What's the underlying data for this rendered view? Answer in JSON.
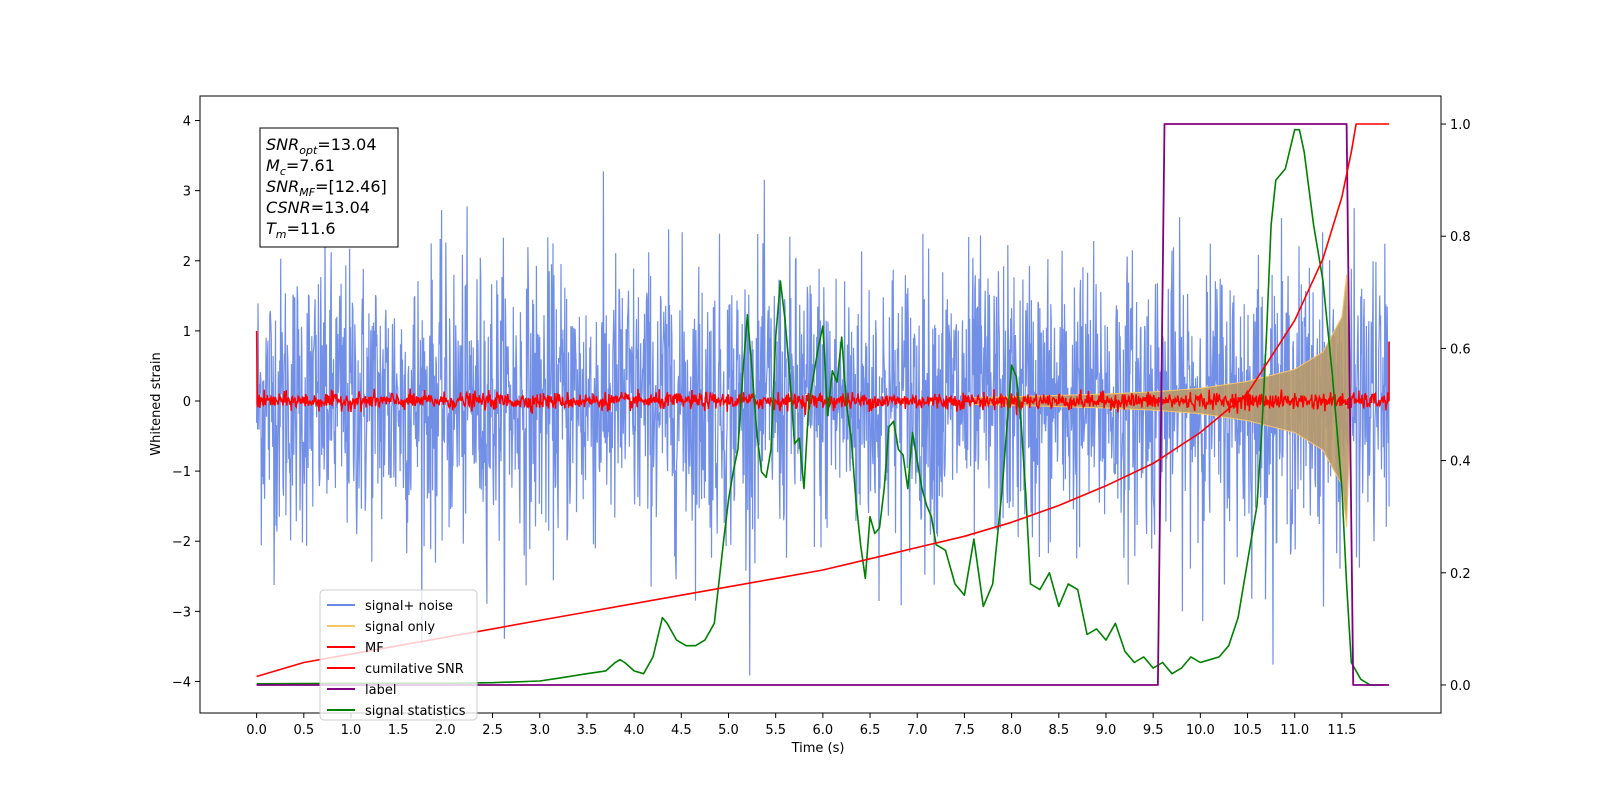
{
  "chart_data": {
    "type": "line",
    "xlabel": "Time (s)",
    "ylabel": "Whitened strain",
    "xlim": [
      -0.6,
      12.55
    ],
    "ylim": [
      -4.45,
      4.35
    ],
    "ylim_right": [
      -0.05,
      1.05
    ],
    "x_ticks": [
      "0.0",
      "0.5",
      "1.0",
      "1.5",
      "2.0",
      "2.5",
      "3.0",
      "3.5",
      "4.0",
      "4.5",
      "5.0",
      "5.5",
      "6.0",
      "6.5",
      "7.0",
      "7.5",
      "8.0",
      "8.5",
      "9.0",
      "9.5",
      "10.0",
      "10.5",
      "11.0",
      "11.5"
    ],
    "y_ticks_left": [
      "4",
      "3",
      "2",
      "1",
      "0",
      "−1",
      "−2",
      "−3",
      "−4"
    ],
    "y_ticks_right": [
      "1.0",
      "0.8",
      "0.6",
      "0.4",
      "0.2",
      "0.0"
    ],
    "annotation": {
      "lines": [
        {
          "sym": "SNR",
          "sub": "opt",
          "val": "=13.04"
        },
        {
          "sym": "M",
          "sub": "c",
          "val": "=7.61"
        },
        {
          "sym": "SNR",
          "sub": "MF",
          "val": "=[12.46]"
        },
        {
          "sym": "CSNR",
          "sub": "",
          "val": "=13.04"
        },
        {
          "sym": "T",
          "sub": "m",
          "val": "=11.6"
        }
      ]
    },
    "series": [
      {
        "name": "signal+ noise",
        "color": "#6a89e6",
        "axis": "left",
        "kind": "noise",
        "x_range": [
          0,
          12.0
        ],
        "amplitude_envelope": 2.9,
        "std": 1.0
      },
      {
        "name": "signal only",
        "color": "#f5c56b",
        "axis": "left",
        "kind": "chirp-envelope",
        "x": [
          7.6,
          8.0,
          8.5,
          9.0,
          9.5,
          10.0,
          10.5,
          11.0,
          11.3,
          11.5,
          11.55,
          11.6
        ],
        "y": [
          0.05,
          0.06,
          0.08,
          0.1,
          0.13,
          0.18,
          0.28,
          0.45,
          0.7,
          1.2,
          1.8,
          0.0
        ]
      },
      {
        "name": "MF",
        "color": "#ff0000",
        "axis": "left",
        "kind": "noise-band",
        "x_range": [
          0,
          12.0
        ],
        "std": 0.06,
        "start_value": 1.0,
        "end_value": 0.85
      },
      {
        "name": "cumilative SNR",
        "color": "#ff0000",
        "axis": "right",
        "x": [
          0,
          0.5,
          1,
          1.5,
          2,
          2.5,
          3,
          3.5,
          4,
          4.5,
          5,
          5.5,
          6,
          6.5,
          7,
          7.5,
          8,
          8.5,
          9,
          9.5,
          10,
          10.5,
          11,
          11.3,
          11.5,
          11.6,
          11.65,
          12.0
        ],
        "y": [
          0.015,
          0.04,
          0.055,
          0.07,
          0.085,
          0.1,
          0.115,
          0.13,
          0.145,
          0.16,
          0.175,
          0.19,
          0.205,
          0.225,
          0.245,
          0.265,
          0.29,
          0.32,
          0.355,
          0.395,
          0.45,
          0.52,
          0.65,
          0.76,
          0.87,
          0.95,
          1.0,
          1.0
        ]
      },
      {
        "name": "label",
        "color": "#800080",
        "axis": "right",
        "x": [
          0,
          9.55,
          9.62,
          11.55,
          11.62,
          12.0
        ],
        "y": [
          0.0,
          0.0,
          1.0,
          1.0,
          0.0,
          0.0
        ]
      },
      {
        "name": "signal statistics",
        "color": "#008000",
        "axis": "right",
        "x": [
          0,
          1,
          2,
          2.5,
          3,
          3.2,
          3.5,
          3.7,
          3.8,
          3.85,
          3.9,
          4.0,
          4.1,
          4.2,
          4.3,
          4.35,
          4.45,
          4.55,
          4.65,
          4.75,
          4.85,
          4.95,
          5.0,
          5.05,
          5.1,
          5.15,
          5.2,
          5.25,
          5.3,
          5.35,
          5.4,
          5.45,
          5.5,
          5.55,
          5.6,
          5.65,
          5.7,
          5.75,
          5.8,
          5.85,
          5.9,
          5.95,
          6.0,
          6.05,
          6.1,
          6.15,
          6.2,
          6.25,
          6.3,
          6.35,
          6.4,
          6.45,
          6.5,
          6.55,
          6.6,
          6.65,
          6.7,
          6.75,
          6.8,
          6.85,
          6.9,
          6.95,
          7.0,
          7.05,
          7.1,
          7.15,
          7.2,
          7.3,
          7.4,
          7.5,
          7.6,
          7.7,
          7.8,
          7.9,
          8.0,
          8.05,
          8.1,
          8.15,
          8.2,
          8.3,
          8.4,
          8.5,
          8.6,
          8.7,
          8.8,
          8.9,
          9.0,
          9.1,
          9.2,
          9.3,
          9.4,
          9.5,
          9.6,
          9.7,
          9.8,
          9.9,
          10.0,
          10.1,
          10.2,
          10.3,
          10.4,
          10.5,
          10.6,
          10.65,
          10.7,
          10.75,
          10.8,
          10.9,
          11.0,
          11.05,
          11.1,
          11.2,
          11.3,
          11.4,
          11.5,
          11.55,
          11.6,
          11.7,
          11.8,
          11.9,
          11.95
        ],
        "y": [
          0.002,
          0.003,
          0.003,
          0.004,
          0.007,
          0.012,
          0.02,
          0.025,
          0.04,
          0.045,
          0.04,
          0.025,
          0.02,
          0.05,
          0.12,
          0.11,
          0.08,
          0.07,
          0.07,
          0.08,
          0.11,
          0.26,
          0.33,
          0.38,
          0.42,
          0.55,
          0.66,
          0.56,
          0.45,
          0.38,
          0.37,
          0.42,
          0.62,
          0.72,
          0.65,
          0.55,
          0.43,
          0.44,
          0.35,
          0.5,
          0.55,
          0.6,
          0.64,
          0.48,
          0.56,
          0.54,
          0.62,
          0.5,
          0.44,
          0.33,
          0.25,
          0.19,
          0.3,
          0.27,
          0.28,
          0.35,
          0.46,
          0.47,
          0.42,
          0.41,
          0.35,
          0.45,
          0.4,
          0.35,
          0.32,
          0.3,
          0.25,
          0.24,
          0.18,
          0.16,
          0.26,
          0.14,
          0.18,
          0.35,
          0.57,
          0.55,
          0.47,
          0.34,
          0.18,
          0.17,
          0.2,
          0.14,
          0.18,
          0.17,
          0.09,
          0.1,
          0.08,
          0.11,
          0.06,
          0.04,
          0.05,
          0.03,
          0.04,
          0.02,
          0.03,
          0.05,
          0.04,
          0.045,
          0.05,
          0.07,
          0.12,
          0.22,
          0.32,
          0.45,
          0.62,
          0.82,
          0.9,
          0.92,
          0.99,
          0.99,
          0.95,
          0.82,
          0.72,
          0.55,
          0.35,
          0.18,
          0.04,
          0.01,
          0.0,
          0.0,
          0.0
        ]
      }
    ]
  }
}
